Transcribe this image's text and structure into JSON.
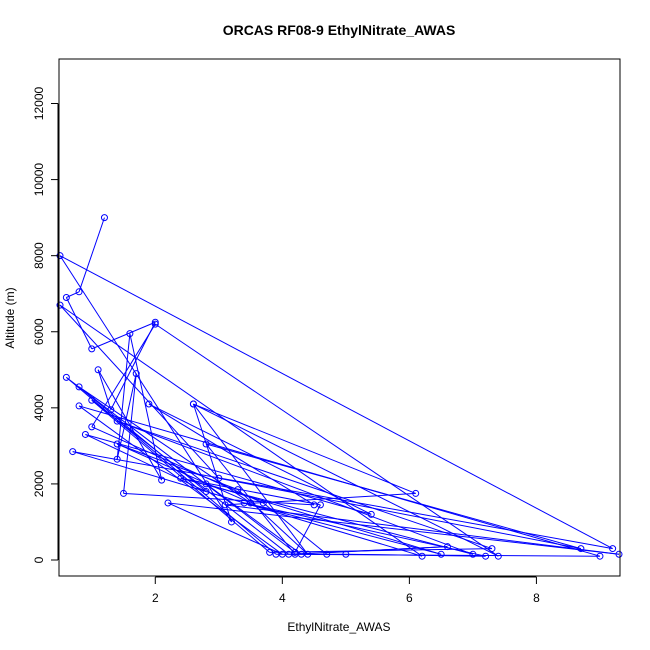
{
  "chart_data": {
    "type": "line",
    "title": "ORCAS RF08-9 EthylNitrate_AWAS",
    "xlabel": "EthylNitrate_AWAS",
    "ylabel": "Altitude (m)",
    "xlim": [
      0.5,
      9.3
    ],
    "ylim": [
      0,
      12500
    ],
    "xticks": [
      2,
      4,
      6,
      8
    ],
    "yticks": [
      0,
      2000,
      4000,
      6000,
      8000,
      10000,
      12000
    ],
    "grid": false,
    "legend": "none",
    "color": "#0000ff",
    "points": [
      [
        1.2,
        9000
      ],
      [
        0.8,
        7050
      ],
      [
        0.6,
        6900
      ],
      [
        1.0,
        5550
      ],
      [
        2.0,
        6250
      ],
      [
        1.3,
        3950
      ],
      [
        1.1,
        5000
      ],
      [
        2.1,
        2100
      ],
      [
        1.6,
        5950
      ],
      [
        1.4,
        2650
      ],
      [
        1.7,
        4900
      ],
      [
        1.5,
        1750
      ],
      [
        4.5,
        1450
      ],
      [
        1.9,
        4100
      ],
      [
        5.4,
        1200
      ],
      [
        0.9,
        3300
      ],
      [
        2.8,
        1800
      ],
      [
        0.8,
        4550
      ],
      [
        3.5,
        1500
      ],
      [
        1.4,
        3050
      ],
      [
        3.3,
        1850
      ],
      [
        4.4,
        150
      ],
      [
        2.6,
        4100
      ],
      [
        3.2,
        1000
      ],
      [
        0.5,
        8000
      ],
      [
        9.2,
        300
      ],
      [
        0.7,
        2850
      ],
      [
        6.2,
        100
      ],
      [
        0.5,
        6700
      ],
      [
        3.0,
        2150
      ],
      [
        8.7,
        300
      ],
      [
        2.8,
        3050
      ],
      [
        4.2,
        150
      ],
      [
        6.6,
        350
      ],
      [
        4.1,
        150
      ],
      [
        1.0,
        4200
      ],
      [
        3.8,
        200
      ],
      [
        7.3,
        300
      ],
      [
        1.4,
        3650
      ],
      [
        7.0,
        150
      ],
      [
        2.4,
        2150
      ],
      [
        4.6,
        1450
      ],
      [
        4.2,
        200
      ],
      [
        0.6,
        4800
      ],
      [
        3.9,
        150
      ],
      [
        9.0,
        100
      ],
      [
        0.8,
        4050
      ],
      [
        4.0,
        150
      ],
      [
        2.2,
        1500
      ],
      [
        9.3,
        150
      ],
      [
        3.1,
        1450
      ],
      [
        6.1,
        1750
      ],
      [
        2.6,
        4100
      ],
      [
        7.4,
        100
      ],
      [
        2.0,
        6200
      ],
      [
        1.0,
        3500
      ],
      [
        3.7,
        1500
      ],
      [
        4.7,
        150
      ],
      [
        5.0,
        150
      ],
      [
        7.2,
        100
      ],
      [
        3.4,
        1500
      ],
      [
        6.5,
        150
      ],
      [
        2.8,
        2000
      ],
      [
        4.3,
        150
      ]
    ]
  }
}
